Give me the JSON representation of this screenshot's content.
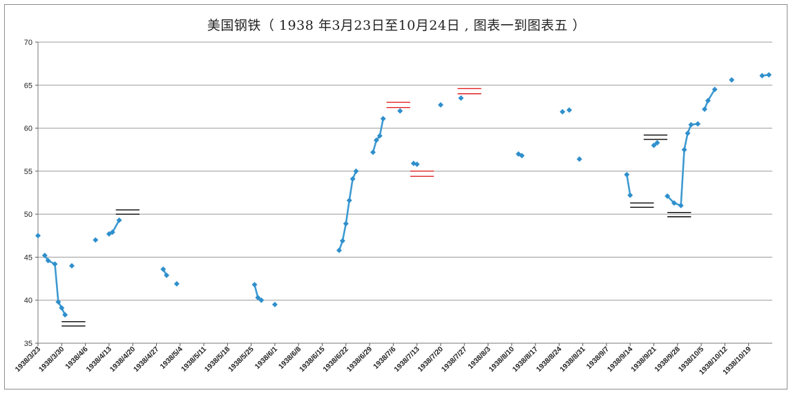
{
  "chart_data": {
    "type": "line",
    "title": "美国钢铁（ 1938 年3月23日至10月24日 , 图表一到图表五 ）",
    "xlabel": "",
    "ylabel": "",
    "ylim": [
      35,
      70
    ],
    "yticks": [
      35,
      40,
      45,
      50,
      55,
      60,
      65,
      70
    ],
    "xlim": [
      "1938-03-23",
      "1938-10-26"
    ],
    "x_tick_labels": [
      "1938/3/23",
      "1938/3/30",
      "1938/4/6",
      "1938/4/13",
      "1938/4/20",
      "1938/4/27",
      "1938/5/4",
      "1938/5/11",
      "1938/5/18",
      "1938/5/25",
      "1938/6/1",
      "1938/6/8",
      "1938/6/15",
      "1938/6/22",
      "1938/6/29",
      "1938/7/6",
      "1938/7/13",
      "1938/7/20",
      "1938/7/27",
      "1938/8/3",
      "1938/8/10",
      "1938/8/17",
      "1938/8/24",
      "1938/8/31",
      "1938/9/7",
      "1938/9/14",
      "1938/9/21",
      "1938/9/28",
      "1938/10/5",
      "1938/10/12",
      "1938/10/19"
    ],
    "grid": "horizontal",
    "colors": {
      "series": "#3d9ad1",
      "marker": "#2f8fcc",
      "black_lines": "#000000",
      "red_lines": "#e02020",
      "grid": "#999999"
    },
    "series": [
      {
        "points": [
          [
            "1938-03-23",
            47.5
          ]
        ]
      },
      {
        "points": [
          [
            "1938-03-25",
            45.2
          ],
          [
            "1938-03-26",
            44.6
          ],
          [
            "1938-03-28",
            44.2
          ],
          [
            "1938-03-29",
            39.8
          ],
          [
            "1938-03-30",
            39.1
          ],
          [
            "1938-03-31",
            38.3
          ]
        ]
      },
      {
        "points": [
          [
            "1938-04-02",
            44.0
          ]
        ]
      },
      {
        "points": [
          [
            "1938-04-09",
            47.0
          ]
        ]
      },
      {
        "points": [
          [
            "1938-04-13",
            47.7
          ],
          [
            "1938-04-14",
            47.9
          ],
          [
            "1938-04-16",
            49.3
          ]
        ]
      },
      {
        "points": [
          [
            "1938-04-29",
            43.6
          ],
          [
            "1938-04-30",
            42.9
          ]
        ]
      },
      {
        "points": [
          [
            "1938-05-03",
            41.9
          ]
        ]
      },
      {
        "points": [
          [
            "1938-05-26",
            41.8
          ],
          [
            "1938-05-27",
            40.3
          ],
          [
            "1938-05-28",
            40.0
          ]
        ]
      },
      {
        "points": [
          [
            "1938-06-01",
            39.5
          ]
        ]
      },
      {
        "points": [
          [
            "1938-06-20",
            45.8
          ],
          [
            "1938-06-21",
            46.9
          ],
          [
            "1938-06-22",
            48.9
          ],
          [
            "1938-06-23",
            51.6
          ],
          [
            "1938-06-24",
            54.1
          ],
          [
            "1938-06-25",
            55.0
          ]
        ]
      },
      {
        "points": [
          [
            "1938-06-30",
            57.2
          ],
          [
            "1938-07-01",
            58.6
          ],
          [
            "1938-07-02",
            59.1
          ],
          [
            "1938-07-03",
            61.1
          ]
        ]
      },
      {
        "points": [
          [
            "1938-07-08",
            62.0
          ]
        ]
      },
      {
        "points": [
          [
            "1938-07-12",
            55.9
          ],
          [
            "1938-07-13",
            55.8
          ]
        ]
      },
      {
        "points": [
          [
            "1938-07-20",
            62.7
          ]
        ]
      },
      {
        "points": [
          [
            "1938-07-26",
            63.5
          ]
        ]
      },
      {
        "points": [
          [
            "1938-08-12",
            57.0
          ],
          [
            "1938-08-13",
            56.8
          ]
        ]
      },
      {
        "points": [
          [
            "1938-08-25",
            61.9
          ]
        ]
      },
      {
        "points": [
          [
            "1938-08-27",
            62.1
          ]
        ]
      },
      {
        "points": [
          [
            "1938-08-30",
            56.4
          ]
        ]
      },
      {
        "points": [
          [
            "1938-09-13",
            54.6
          ],
          [
            "1938-09-14",
            52.2
          ]
        ]
      },
      {
        "points": [
          [
            "1938-09-21",
            58.0
          ],
          [
            "1938-09-22",
            58.3
          ]
        ]
      },
      {
        "points": [
          [
            "1938-09-25",
            52.1
          ],
          [
            "1938-09-27",
            51.3
          ],
          [
            "1938-09-29",
            51.0
          ],
          [
            "1938-09-30",
            57.5
          ],
          [
            "1938-10-01",
            59.4
          ],
          [
            "1938-10-02",
            60.4
          ],
          [
            "1938-10-04",
            60.5
          ]
        ]
      },
      {
        "points": [
          [
            "1938-10-06",
            62.2
          ],
          [
            "1938-10-07",
            63.2
          ],
          [
            "1938-10-09",
            64.5
          ]
        ]
      },
      {
        "points": [
          [
            "1938-10-14",
            65.6
          ]
        ]
      },
      {
        "points": [
          [
            "1938-10-23",
            66.1
          ],
          [
            "1938-10-25",
            66.2
          ]
        ]
      }
    ],
    "annotation_lines": [
      {
        "color": "black",
        "x_range": [
          "1938-03-30",
          "1938-04-06"
        ],
        "y": 37.5
      },
      {
        "color": "black",
        "x_range": [
          "1938-03-30",
          "1938-04-06"
        ],
        "y": 37.0
      },
      {
        "color": "black",
        "x_range": [
          "1938-04-15",
          "1938-04-22"
        ],
        "y": 50.5
      },
      {
        "color": "black",
        "x_range": [
          "1938-04-15",
          "1938-04-22"
        ],
        "y": 50.0
      },
      {
        "color": "red",
        "x_range": [
          "1938-07-04",
          "1938-07-11"
        ],
        "y": 63.0
      },
      {
        "color": "red",
        "x_range": [
          "1938-07-04",
          "1938-07-11"
        ],
        "y": 62.4
      },
      {
        "color": "red",
        "x_range": [
          "1938-07-11",
          "1938-07-18"
        ],
        "y": 55.0
      },
      {
        "color": "red",
        "x_range": [
          "1938-07-11",
          "1938-07-18"
        ],
        "y": 54.4
      },
      {
        "color": "red",
        "x_range": [
          "1938-07-25",
          "1938-08-01"
        ],
        "y": 64.6
      },
      {
        "color": "red",
        "x_range": [
          "1938-07-25",
          "1938-08-01"
        ],
        "y": 64.0
      },
      {
        "color": "black",
        "x_range": [
          "1938-09-14",
          "1938-09-21"
        ],
        "y": 51.3
      },
      {
        "color": "black",
        "x_range": [
          "1938-09-14",
          "1938-09-21"
        ],
        "y": 50.8
      },
      {
        "color": "black",
        "x_range": [
          "1938-09-18",
          "1938-09-25"
        ],
        "y": 59.2
      },
      {
        "color": "black",
        "x_range": [
          "1938-09-18",
          "1938-09-25"
        ],
        "y": 58.7
      },
      {
        "color": "black",
        "x_range": [
          "1938-09-25",
          "1938-10-02"
        ],
        "y": 50.2
      },
      {
        "color": "black",
        "x_range": [
          "1938-09-25",
          "1938-10-02"
        ],
        "y": 49.7
      }
    ]
  }
}
